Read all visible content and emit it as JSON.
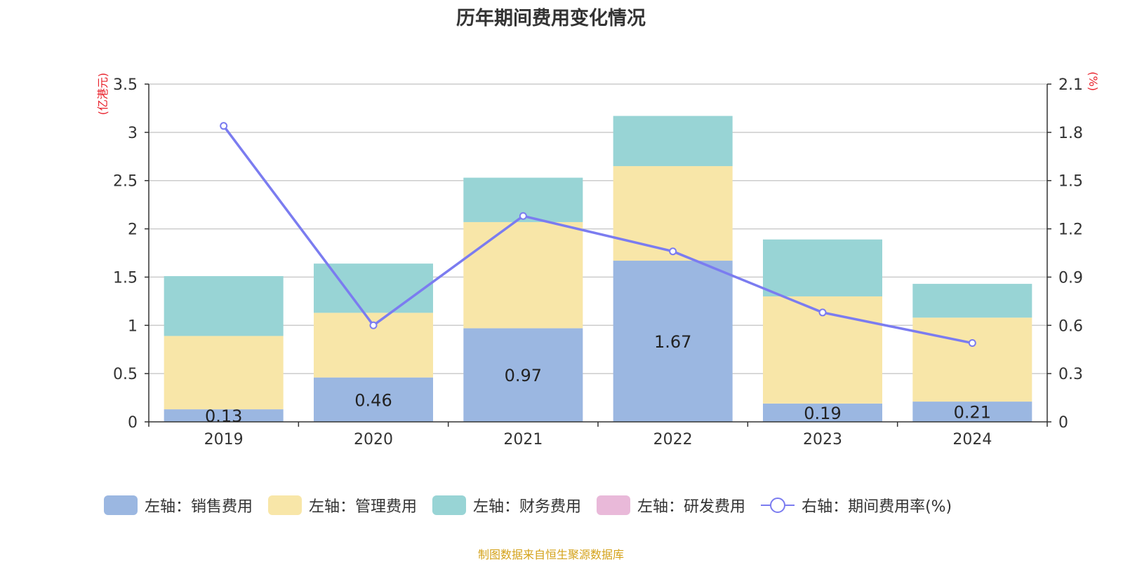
{
  "chart_data": {
    "type": "bar",
    "title": "历年期间费用变化情况",
    "categories": [
      "2019",
      "2020",
      "2021",
      "2022",
      "2023",
      "2024"
    ],
    "left_axis": {
      "unit_label": "(亿港元)",
      "ylim": [
        0,
        3.5
      ],
      "ticks": [
        "0",
        "0.5",
        "1",
        "1.5",
        "2",
        "2.5",
        "3",
        "3.5"
      ]
    },
    "right_axis": {
      "unit_label": "(%)",
      "ylim": [
        0,
        2.1
      ],
      "ticks": [
        "0",
        "0.3",
        "0.6",
        "0.9",
        "1.2",
        "1.5",
        "1.8",
        "2.1"
      ]
    },
    "stacked_series": [
      {
        "name": "左轴：销售费用",
        "color": "#9bb7e1",
        "values": [
          0.13,
          0.46,
          0.97,
          1.67,
          0.19,
          0.21
        ],
        "labels": [
          "0.13",
          "0.46",
          "0.97",
          "1.67",
          "0.19",
          "0.21"
        ]
      },
      {
        "name": "左轴：管理费用",
        "color": "#f8e6a8",
        "values": [
          0.76,
          0.67,
          1.1,
          0.98,
          1.11,
          0.87
        ]
      },
      {
        "name": "左轴：财务费用",
        "color": "#98d4d5",
        "values": [
          0.62,
          0.51,
          0.46,
          0.52,
          0.59,
          0.35
        ]
      },
      {
        "name": "左轴：研发费用",
        "color": "#e9b9d9",
        "values": [
          0,
          0,
          0,
          0,
          0,
          0
        ]
      }
    ],
    "line_series": {
      "name": "右轴：期间费用率(%)",
      "color": "#7b7cf0",
      "values": [
        1.84,
        0.6,
        1.28,
        1.06,
        0.68,
        0.49
      ]
    },
    "grid": true,
    "legend_position": "bottom"
  },
  "source_text": "制图数据来自恒生聚源数据库"
}
